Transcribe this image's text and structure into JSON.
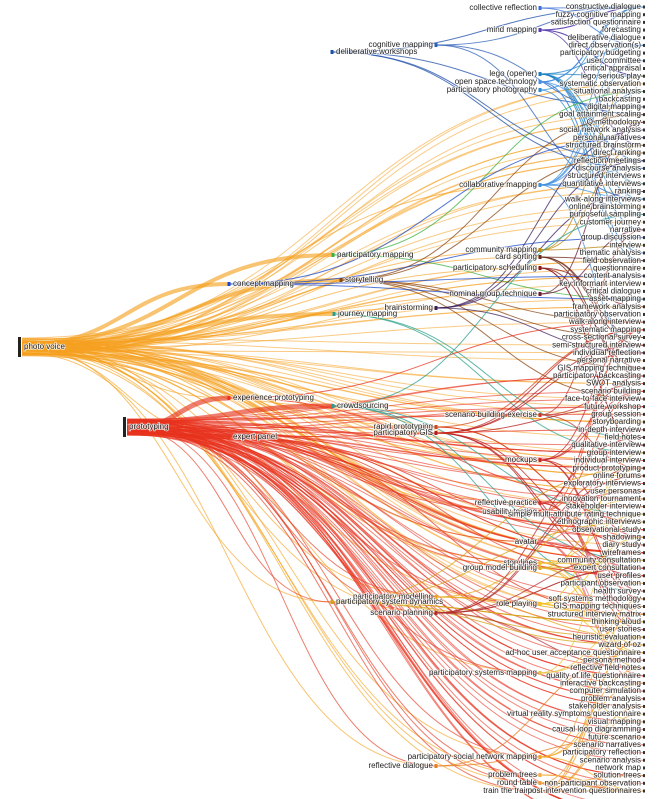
{
  "sources": [
    "photo voice",
    "prototyping"
  ],
  "hubs": [
    "collective reflection",
    "mind mapping",
    "cognitive mapping",
    "deliberative workshops",
    "lego (opener)",
    "open space technology",
    "participatory photography",
    "collaborative mapping",
    "community mapping",
    "participatory mapping",
    "card sorting",
    "participatory scheduling",
    "storytelling",
    "concept mapping",
    "nominal group technique",
    "brainstorming",
    "journey mapping",
    "experience prototyping",
    "crowdsourcing",
    "scenario building exercise",
    "rapid prototyping",
    "participatory GIS",
    "expert panel",
    "mockups",
    "reflective practice",
    "usability testing",
    "avatar",
    "storylines",
    "group model building",
    "participatory modelling",
    "participatory system dynamics",
    "role playing",
    "scenario planning",
    "participatory systems mapping",
    "participatory social network mapping",
    "reflective dialogue",
    "problem trees",
    "round table",
    "train the trainer"
  ],
  "methods": [
    "constructive dialogue",
    "fuzzy cognitive mapping",
    "satisfaction questionnaire",
    "forecasting",
    "deliberative dialogue",
    "direct observation(s)",
    "participatory budgeting",
    "user committee",
    "critical appraisal",
    "lego serious play",
    "systematic observation",
    "situational analysis",
    "backcasting",
    "digital mapping",
    "goal attainment scaling",
    "Q methodology",
    "social network analysis",
    "personal narratives",
    "structured brainstorm",
    "direct ranking",
    "reflection meetings",
    "discourse analysis",
    "structured interviews",
    "quantitative interviews",
    "ranking",
    "walk-along interviews",
    "online brainstorming",
    "purposeful sampling",
    "customer journey",
    "narrative",
    "group discussion",
    "interview",
    "thematic analysis",
    "field observation",
    "questionnaire",
    "content analysis",
    "key informant interview",
    "critical dialogue",
    "asset mapping",
    "framework analysis",
    "participatory observation",
    "walk-along interview",
    "systematic mapping",
    "cross-sectional survey",
    "semi-structured interview",
    "individual reflection",
    "personal narrative",
    "GIS mapping technique",
    "participatory backcasting",
    "SWOT analysis",
    "scenario building",
    "face-to-face interview",
    "future workshop",
    "group session",
    "storyboarding",
    "in-depth interview",
    "field notes",
    "qualitative interview",
    "group interview",
    "individual interview",
    "product prototyping",
    "online forums",
    "exploratory interviews",
    "user personas",
    "innovation tournament",
    "stakeholder interview",
    "simple multi-attribute rating technique",
    "ethnographic interviews",
    "observational study",
    "shadowing",
    "diary study",
    "wireframes",
    "community consultation",
    "expert consultation",
    "user profiles",
    "participant observation",
    "health survey",
    "soft systems methodology",
    "GIS mapping techniques",
    "structured interview matrix",
    "thinking aloud",
    "user stories",
    "heuristic evaluation",
    "wizard of oz",
    "ad-hoc user acceptance questionnaire",
    "persona method",
    "reflective field notes",
    "quality of life questionnaire",
    "interactive backcasting",
    "computer simulation",
    "problem analysis",
    "stakeholder analysis",
    "virtual reality symptoms questionnaire",
    "visual mapping",
    "causal loop diagramming",
    "future scenario",
    "scenario narratives",
    "participatory reflection",
    "scenario analysis",
    "network map",
    "solution trees",
    "non-participant observation",
    "post-intervention questionnaires"
  ]
}
